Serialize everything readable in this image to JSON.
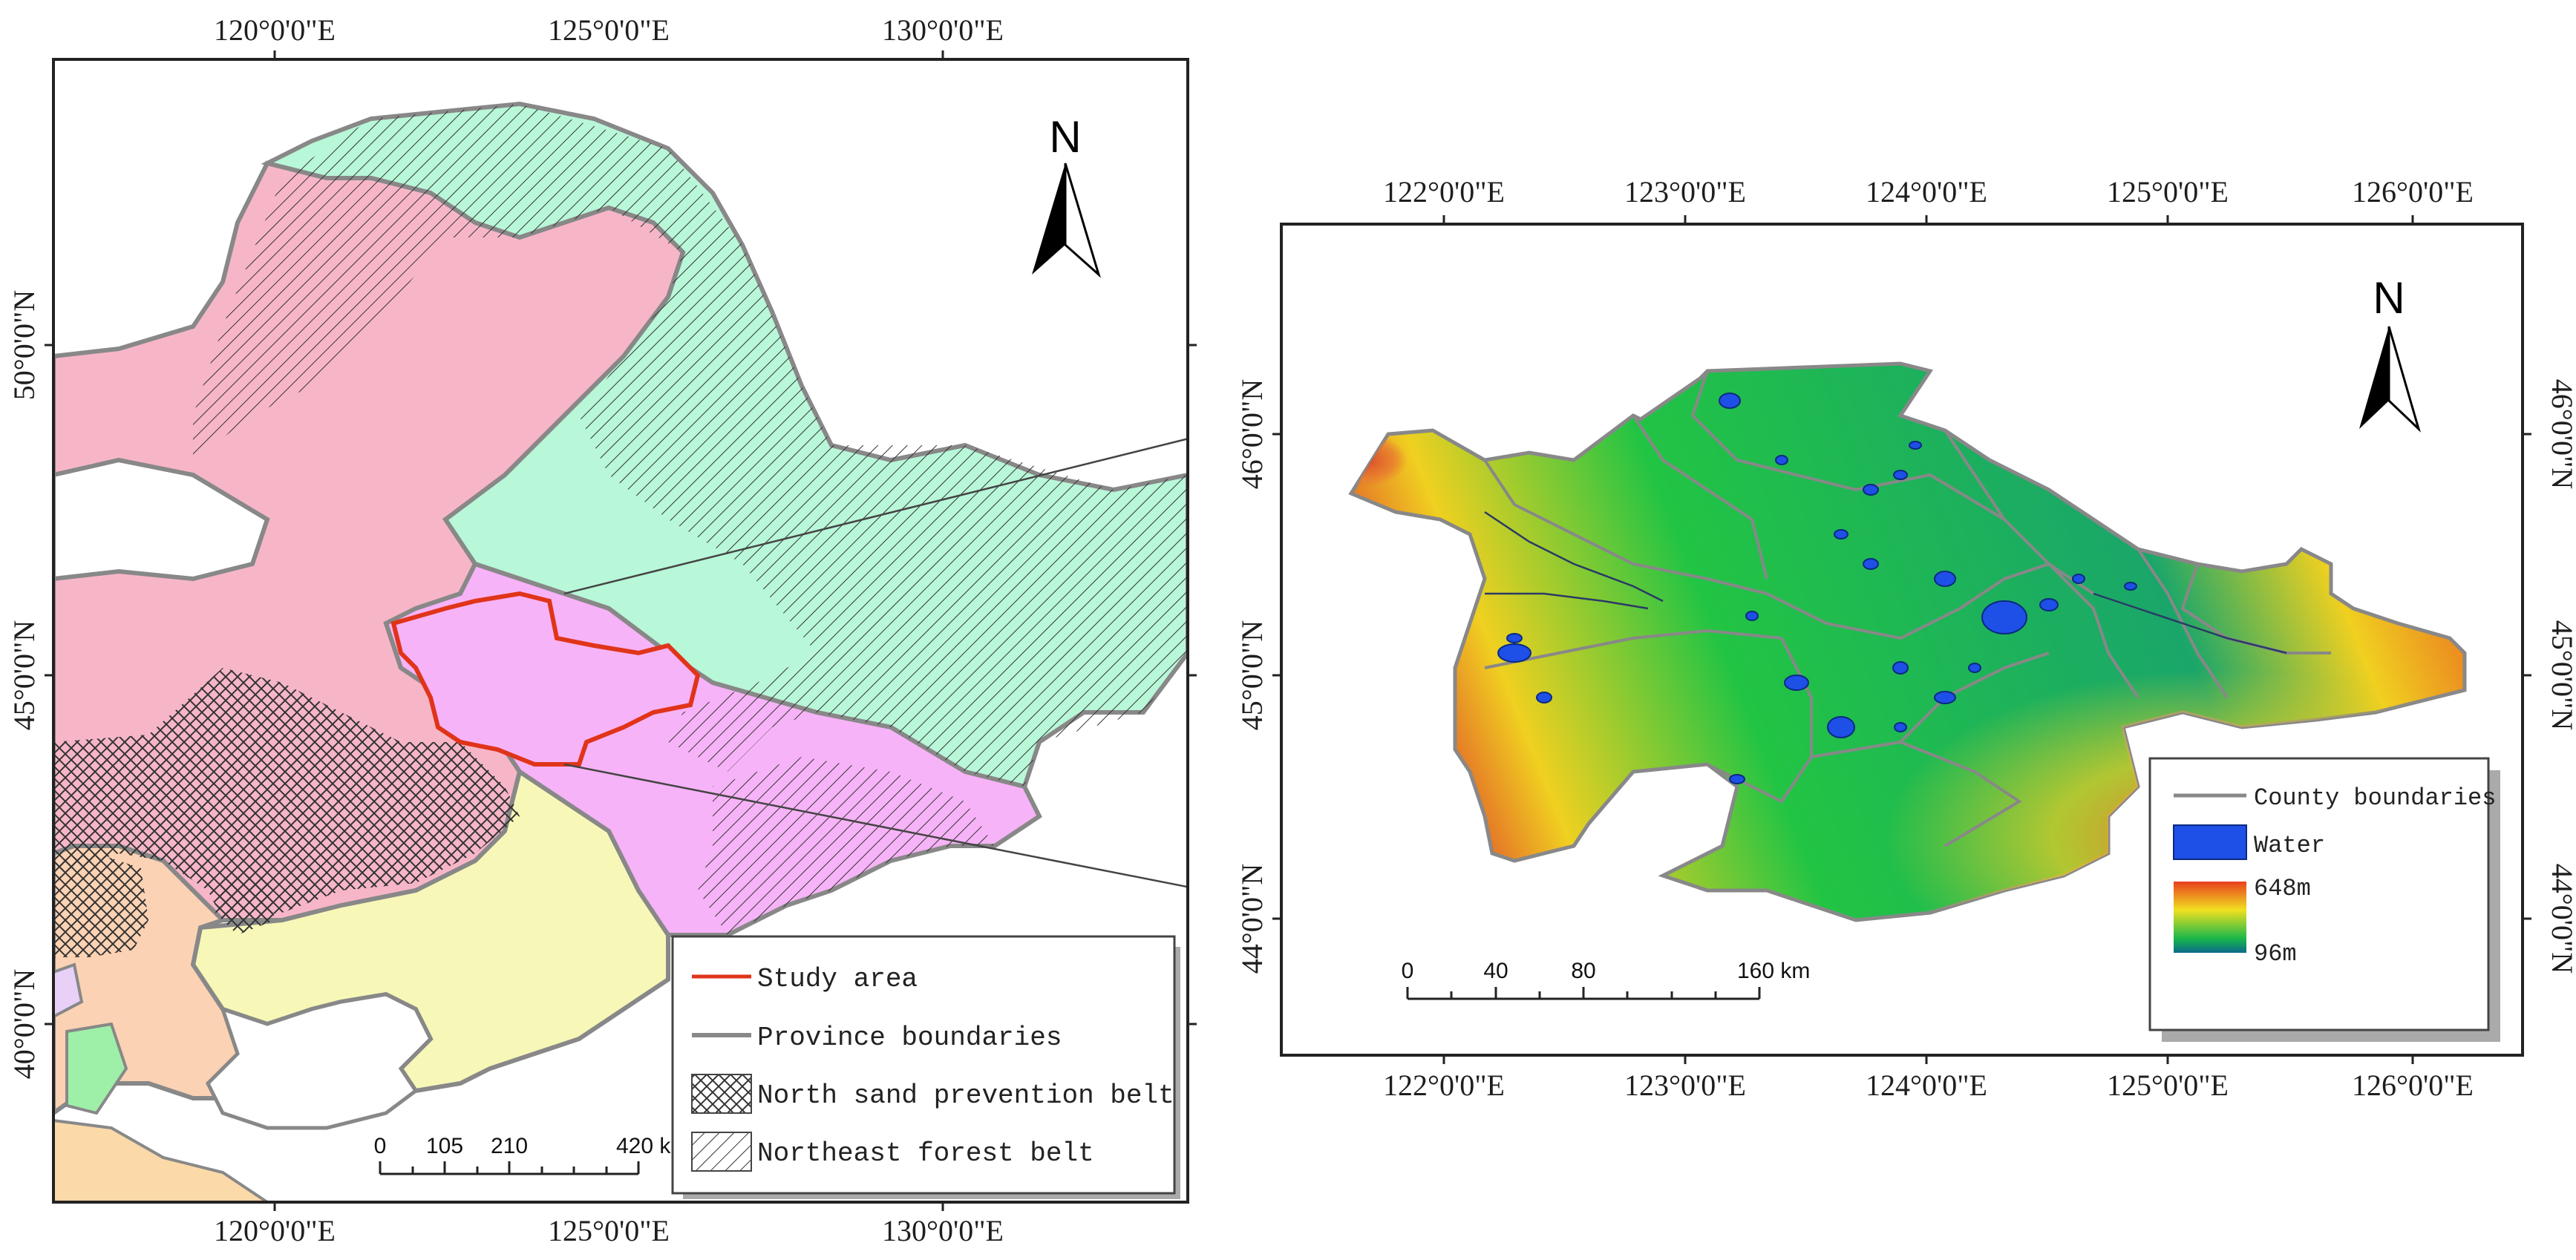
{
  "left_map": {
    "top_ticks": [
      "120°0'0\"E",
      "125°0'0\"E",
      "130°0'0\"E"
    ],
    "bottom_ticks": [
      "120°0'0\"E",
      "125°0'0\"E",
      "130°0'0\"E"
    ],
    "left_ticks": [
      "50°0'0\"N",
      "45°0'0\"N",
      "40°0'0\"N"
    ],
    "north_label": "N",
    "scale": {
      "labels": [
        "0",
        "105",
        "210",
        "420 km"
      ]
    },
    "legend": {
      "items": [
        {
          "label": "Study area",
          "symbol": "red-line"
        },
        {
          "label": "Province boundaries",
          "symbol": "gray-line"
        },
        {
          "label": "North sand prevention belt",
          "symbol": "crosshatch"
        },
        {
          "label": "Northeast forest belt",
          "symbol": "diagonal-hatch"
        }
      ]
    },
    "colors": {
      "inner_mongolia": "#f7b6c8",
      "heilongjiang": "#b8f7d8",
      "jilin": "#f7b3f7",
      "liaoning": "#f7f7b8",
      "hebei": "#fbd2b3",
      "study_area_outline": "#e0341a"
    }
  },
  "right_map": {
    "top_ticks": [
      "122°0'0\"E",
      "123°0'0\"E",
      "124°0'0\"E",
      "125°0'0\"E",
      "126°0'0\"E"
    ],
    "bottom_ticks": [
      "122°0'0\"E",
      "123°0'0\"E",
      "124°0'0\"E",
      "125°0'0\"E",
      "126°0'0\"E"
    ],
    "left_ticks": [
      "46°0'0\"N",
      "45°0'0\"N",
      "44°0'0\"N"
    ],
    "right_ticks": [
      "46°0'0\"N",
      "45°0'0\"N",
      "44°0'0\"N"
    ],
    "north_label": "N",
    "scale": {
      "labels": [
        "0",
        "40",
        "80",
        "160 km"
      ]
    },
    "legend": {
      "county_label": "County boundaries",
      "water_label": "Water",
      "elev_max": "648m",
      "elev_min": "96m"
    },
    "colors": {
      "water": "#1e4fe6",
      "elev_high": "#e8401e",
      "elev_mid": "#f0e020",
      "elev_low": "#1aa64a"
    }
  }
}
